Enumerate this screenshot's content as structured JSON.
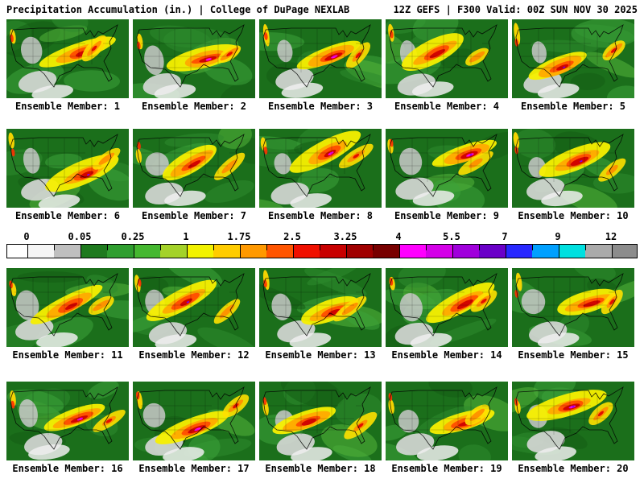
{
  "header": {
    "title_left": "Precipitation Accumulation (in.) | College of DuPage NEXLAB",
    "title_right": "12Z GEFS | F300 Valid: 00Z SUN NOV 30 2025"
  },
  "panels": [
    {
      "member": 1,
      "label": "Ensemble Member: 1"
    },
    {
      "member": 2,
      "label": "Ensemble Member: 2"
    },
    {
      "member": 3,
      "label": "Ensemble Member: 3"
    },
    {
      "member": 4,
      "label": "Ensemble Member: 4"
    },
    {
      "member": 5,
      "label": "Ensemble Member: 5"
    },
    {
      "member": 6,
      "label": "Ensemble Member: 6"
    },
    {
      "member": 7,
      "label": "Ensemble Member: 7"
    },
    {
      "member": 8,
      "label": "Ensemble Member: 8"
    },
    {
      "member": 9,
      "label": "Ensemble Member: 9"
    },
    {
      "member": 10,
      "label": "Ensemble Member: 10"
    },
    {
      "member": 11,
      "label": "Ensemble Member: 11"
    },
    {
      "member": 12,
      "label": "Ensemble Member: 12"
    },
    {
      "member": 13,
      "label": "Ensemble Member: 13"
    },
    {
      "member": 14,
      "label": "Ensemble Member: 14"
    },
    {
      "member": 15,
      "label": "Ensemble Member: 15"
    },
    {
      "member": 16,
      "label": "Ensemble Member: 16"
    },
    {
      "member": 17,
      "label": "Ensemble Member: 17"
    },
    {
      "member": 18,
      "label": "Ensemble Member: 18"
    },
    {
      "member": 19,
      "label": "Ensemble Member: 19"
    },
    {
      "member": 20,
      "label": "Ensemble Member: 20"
    }
  ],
  "colorbar": {
    "units": "in.",
    "tick_labels": [
      "0",
      "0.05",
      "0.25",
      "1",
      "1.75",
      "2.5",
      "3.25",
      "4",
      "5.5",
      "7",
      "9",
      "12"
    ],
    "below_scale_color": "#ffffff",
    "above_scale_color": "#8c8c8c",
    "segment_colors": [
      "#f5f5f5",
      "#bfbfbf",
      "#1e7a1e",
      "#2f9e2f",
      "#45b830",
      "#a4d229",
      "#f2f200",
      "#ffcc00",
      "#ff9900",
      "#ff5500",
      "#f01000",
      "#c80000",
      "#a00000",
      "#780000",
      "#ff00ff",
      "#d400e8",
      "#a000dc",
      "#6a00c8",
      "#2828ff",
      "#00a0ff",
      "#00e0e0",
      "#aaaaaa"
    ]
  }
}
